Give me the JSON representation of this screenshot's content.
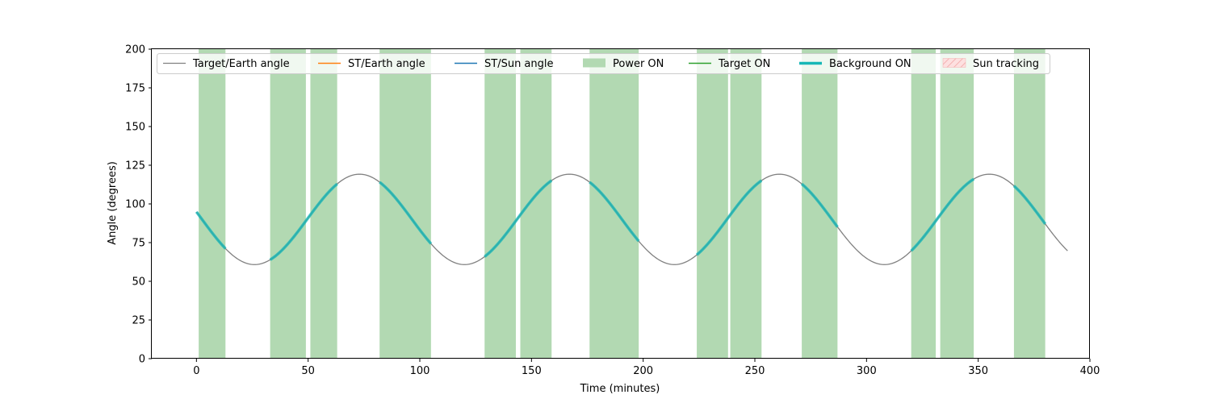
{
  "chart_data": {
    "type": "line",
    "xlabel": "Time (minutes)",
    "ylabel": "Angle (degrees)",
    "xlim": [
      -20,
      400
    ],
    "ylim": [
      0,
      200
    ],
    "xticks": [
      0,
      50,
      100,
      150,
      200,
      250,
      300,
      350,
      400
    ],
    "yticks": [
      0,
      25,
      50,
      75,
      100,
      125,
      150,
      175,
      200
    ],
    "grid": false,
    "legend_position": "top",
    "legend": [
      {
        "label": "Target/Earth angle",
        "kind": "line",
        "color": "#808080"
      },
      {
        "label": "ST/Earth angle",
        "kind": "line",
        "color": "#ff7f0e"
      },
      {
        "label": "ST/Sun angle",
        "kind": "line",
        "color": "#1f77b4"
      },
      {
        "label": "Power ON",
        "kind": "patch",
        "color": "#b2d9b2"
      },
      {
        "label": "Target ON",
        "kind": "line",
        "color": "#2ca02c"
      },
      {
        "label": "Background ON",
        "kind": "thickline",
        "color": "#17b7b7"
      },
      {
        "label": "Sun tracking",
        "kind": "hatch",
        "color": "#f4b0b0"
      }
    ],
    "target_earth_angle": {
      "mean": 90,
      "amplitude": 29.2,
      "period_min": 94,
      "phase_min": 49.5,
      "x_start": 0,
      "x_end": 390,
      "color": "#808080"
    },
    "power_on_intervals": [
      [
        1,
        13
      ],
      [
        33,
        49
      ],
      [
        51,
        63
      ],
      [
        82,
        105
      ],
      [
        129,
        143
      ],
      [
        145,
        159
      ],
      [
        176,
        198
      ],
      [
        224,
        238
      ],
      [
        239,
        253
      ],
      [
        271,
        287
      ],
      [
        320,
        331
      ],
      [
        333,
        348
      ],
      [
        366,
        380
      ]
    ],
    "background_on_intervals": [
      [
        0,
        13
      ],
      [
        33,
        63
      ],
      [
        82,
        105
      ],
      [
        129,
        159
      ],
      [
        176,
        198
      ],
      [
        224,
        253
      ],
      [
        271,
        287
      ],
      [
        320,
        348
      ],
      [
        366,
        380
      ]
    ],
    "background_color": "#17b7b7",
    "power_color": "#b2d9b2"
  }
}
